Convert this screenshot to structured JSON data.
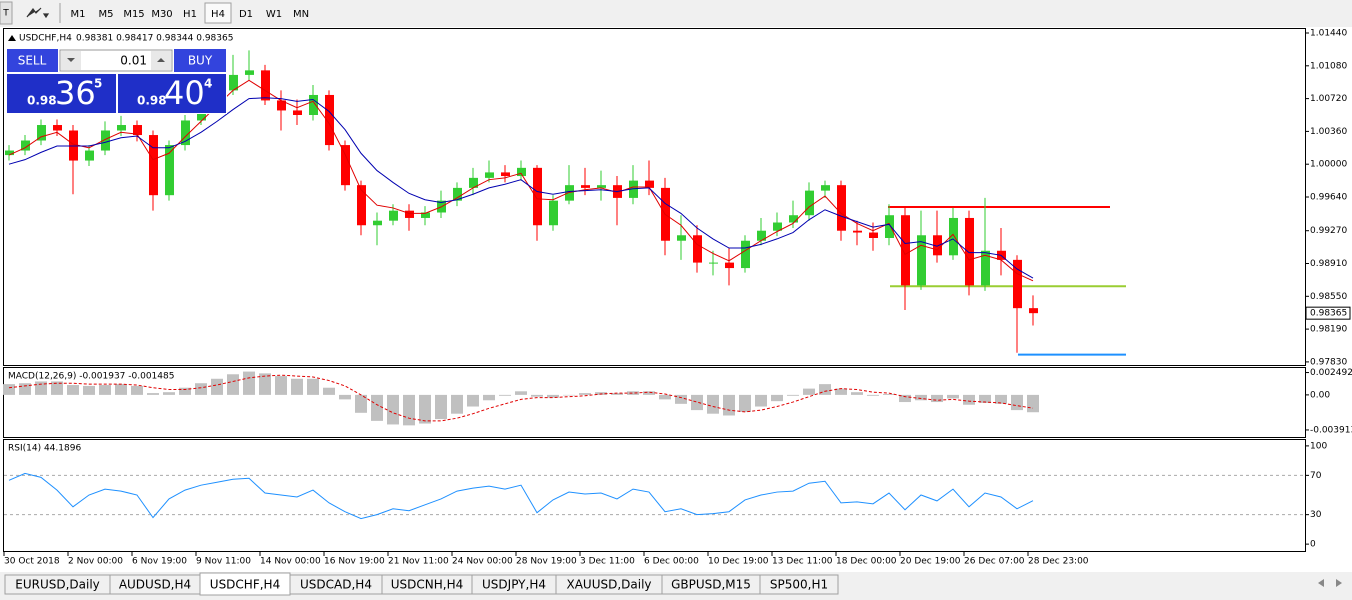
{
  "toolbar": {
    "timeframes": [
      "M1",
      "M5",
      "M15",
      "M30",
      "H1",
      "H4",
      "D1",
      "W1",
      "MN"
    ],
    "active": "H4"
  },
  "trade_panel": {
    "lot": "0.01",
    "sell": {
      "label": "SELL",
      "big_figure": "0.98",
      "pips": "36",
      "point": "5"
    },
    "buy": {
      "label": "BUY",
      "big_figure": "0.98",
      "pips": "40",
      "point": "4"
    }
  },
  "chart_data": [
    {
      "type": "candlestick",
      "title": "USDCHF,H4",
      "quote": "0.98381 0.98417 0.98344 0.98365",
      "categories": [
        "30 Oct 2018",
        null,
        null,
        null,
        "2 Nov 00:00",
        null,
        null,
        null,
        "6 Nov 19:00",
        null,
        null,
        null,
        "9 Nov 11:00",
        null,
        null,
        null,
        "14 Nov 00:00",
        null,
        null,
        null,
        "16 Nov 19:00",
        null,
        null,
        null,
        "21 Nov 11:00",
        null,
        null,
        null,
        "24 Nov 00:00",
        null,
        null,
        null,
        "28 Nov 19:00",
        null,
        null,
        null,
        "3 Dec 11:00",
        null,
        null,
        null,
        "6 Dec 00:00",
        null,
        null,
        null,
        "10 Dec 19:00",
        null,
        null,
        null,
        "13 Dec 11:00",
        null,
        null,
        null,
        "18 Dec 00:00",
        null,
        null,
        null,
        "20 Dec 19:00",
        null,
        null,
        null,
        "26 Dec 07:00",
        null,
        null,
        null,
        "28 Dec 23:00"
      ],
      "open": [
        1.001,
        1.0015,
        1.0026,
        1.0043,
        1.0037,
        1.0004,
        1.0015,
        1.0037,
        1.0043,
        1.0032,
        0.9966,
        1.0021,
        1.0048,
        1.0065,
        1.0081,
        1.0098,
        1.0103,
        1.007,
        1.0059,
        1.0054,
        1.0076,
        1.0021,
        0.9977,
        0.9933,
        0.9938,
        0.9949,
        0.9941,
        0.9947,
        0.996,
        0.9974,
        0.9985,
        0.9991,
        0.9987,
        0.9996,
        0.9933,
        0.996,
        0.9977,
        0.9974,
        0.9977,
        0.9963,
        0.9982,
        0.9974,
        0.9916,
        0.9922,
        0.9892,
        0.9892,
        0.9886,
        0.9916,
        0.9927,
        0.9936,
        0.9944,
        0.9971,
        0.9977,
        0.9927,
        0.9925,
        0.9919,
        0.9944,
        0.9867,
        0.9922,
        0.99,
        0.9941,
        0.9867,
        0.9905,
        0.9895,
        0.9842
      ],
      "high": [
        1.0021,
        1.0032,
        1.0049,
        1.0049,
        1.0043,
        1.0021,
        1.0047,
        1.0053,
        1.0048,
        1.0037,
        1.0026,
        1.0054,
        1.0071,
        1.0088,
        1.012,
        1.0125,
        1.0109,
        1.0081,
        1.0071,
        1.0087,
        1.0081,
        1.0026,
        0.9982,
        0.9947,
        0.9956,
        0.9956,
        0.9954,
        0.9971,
        0.998,
        0.9996,
        1.0004,
        0.9999,
        1.0004,
        0.9999,
        0.9966,
        0.9999,
        0.9996,
        0.9993,
        0.9987,
        0.9999,
        1.0004,
        0.9985,
        0.9944,
        0.9933,
        0.9905,
        0.9908,
        0.9922,
        0.9941,
        0.9947,
        0.996,
        0.998,
        0.9982,
        0.9982,
        0.9938,
        0.9936,
        0.9956,
        0.9952,
        0.9949,
        0.9949,
        0.9952,
        0.9949,
        0.9963,
        0.993,
        0.99,
        0.9856
      ],
      "low": [
        1.0004,
        1.001,
        1.0021,
        1.0031,
        0.9967,
        0.9998,
        1.001,
        1.0031,
        1.0025,
        0.9949,
        0.996,
        1.0015,
        1.0043,
        1.0059,
        1.0076,
        1.0092,
        1.0065,
        1.0037,
        1.0043,
        1.0048,
        1.0015,
        0.9971,
        0.9922,
        0.9911,
        0.9933,
        0.9927,
        0.9933,
        0.9941,
        0.9954,
        0.9966,
        0.998,
        0.998,
        0.9982,
        0.9916,
        0.9927,
        0.9956,
        0.9966,
        0.996,
        0.9933,
        0.9956,
        0.9966,
        0.99,
        0.9895,
        0.9881,
        0.9878,
        0.9867,
        0.9881,
        0.9911,
        0.9921,
        0.993,
        0.9938,
        0.9963,
        0.9916,
        0.9911,
        0.9905,
        0.9911,
        0.984,
        0.9862,
        0.9892,
        0.9895,
        0.9856,
        0.9861,
        0.9878,
        0.9793,
        0.9823
      ],
      "close": [
        1.0015,
        1.0026,
        1.0043,
        1.0037,
        1.0004,
        1.0015,
        1.0037,
        1.0043,
        1.0032,
        0.9966,
        1.0021,
        1.0048,
        1.0065,
        1.0081,
        1.0098,
        1.0103,
        1.007,
        1.0059,
        1.0054,
        1.0076,
        1.0021,
        0.9977,
        0.9933,
        0.9938,
        0.9949,
        0.9941,
        0.9947,
        0.996,
        0.9974,
        0.9985,
        0.9991,
        0.9987,
        0.9996,
        0.9933,
        0.996,
        0.9977,
        0.9974,
        0.9977,
        0.9963,
        0.9982,
        0.9974,
        0.9916,
        0.9922,
        0.9892,
        0.9892,
        0.9886,
        0.9916,
        0.9927,
        0.9936,
        0.9944,
        0.9971,
        0.9977,
        0.9927,
        0.9925,
        0.9919,
        0.9944,
        0.9867,
        0.9922,
        0.99,
        0.9941,
        0.9867,
        0.9905,
        0.9895,
        0.9842,
        0.98365
      ],
      "up_color": "#32cd32",
      "down_color": "#ff0000",
      "moving_averages": [
        {
          "color": "#e00000",
          "values": [
            1.001,
            1.0018,
            1.003,
            1.0035,
            1.0022,
            1.0018,
            1.0027,
            1.0035,
            1.0033,
            1.0005,
            1.0012,
            1.003,
            1.0047,
            1.0064,
            1.0081,
            1.0092,
            1.0081,
            1.007,
            1.0062,
            1.0069,
            1.0045,
            1.0011,
            0.9972,
            0.9955,
            0.9952,
            0.9946,
            0.9946,
            0.9953,
            0.9963,
            0.9974,
            0.9983,
            0.9985,
            0.999,
            0.9962,
            0.9961,
            0.9969,
            0.9972,
            0.9974,
            0.9969,
            0.9975,
            0.9975,
            0.9945,
            0.9933,
            0.9912,
            0.9902,
            0.9894,
            0.9905,
            0.9916,
            0.9926,
            0.9935,
            0.9953,
            0.9965,
            0.9946,
            0.9935,
            0.9927,
            0.9935,
            0.9901,
            0.9911,
            0.9906,
            0.9923,
            0.9895,
            0.99,
            0.9895,
            0.988,
            0.9872
          ]
        },
        {
          "color": "#0000b0",
          "values": [
            1.0,
            1.0005,
            1.0013,
            1.002,
            1.002,
            1.002,
            1.0024,
            1.0029,
            1.0031,
            1.0018,
            1.0018,
            1.0025,
            1.0035,
            1.0047,
            1.006,
            1.0072,
            1.0073,
            1.0072,
            1.0069,
            1.0071,
            1.0058,
            1.0038,
            1.0012,
            0.9993,
            0.998,
            0.9968,
            0.9961,
            0.9958,
            0.9961,
            0.9967,
            0.9974,
            0.9978,
            0.9983,
            0.997,
            0.9967,
            0.997,
            0.9971,
            0.9972,
            0.997,
            0.9973,
            0.9974,
            0.9957,
            0.9946,
            0.993,
            0.9918,
            0.9908,
            0.9908,
            0.9912,
            0.9918,
            0.9925,
            0.9939,
            0.995,
            0.9943,
            0.9937,
            0.9931,
            0.9934,
            0.9913,
            0.9915,
            0.991,
            0.9918,
            0.9903,
            0.9903,
            0.99,
            0.9885,
            0.9875
          ]
        }
      ],
      "levels": [
        {
          "value": 0.9953,
          "color": "#ff0000"
        },
        {
          "value": 0.9866,
          "color": "#9acd32"
        },
        {
          "value": 0.9791,
          "color": "#1e90ff"
        }
      ],
      "current_price": 0.98365,
      "ylim": [
        0.97796,
        1.01484
      ],
      "yticks": [
        {
          "value": 1.0144,
          "label": "1.01440"
        },
        {
          "value": 1.0108,
          "label": "1.01080"
        },
        {
          "value": 1.0072,
          "label": "1.00720"
        },
        {
          "value": 1.0036,
          "label": "1.00360"
        },
        {
          "value": 1,
          "label": "1.00000"
        },
        {
          "value": 0.9964,
          "label": "0.99640"
        },
        {
          "value": 0.9927,
          "label": "0.99270"
        },
        {
          "value": 0.9891,
          "label": "0.98910"
        },
        {
          "value": 0.9855,
          "label": "0.98550"
        },
        {
          "value": 0.9819,
          "label": "0.98190"
        },
        {
          "value": 0.9783,
          "label": "0.97830"
        }
      ]
    },
    {
      "type": "macd",
      "title": "MACD(12,26,9) -0.001937 -0.001485",
      "color": "#c0c0c0",
      "values": [
        0.0012,
        0.0013,
        0.0015,
        0.0015,
        0.0011,
        0.001,
        0.0011,
        0.0012,
        0.001,
        0.0002,
        0.0003,
        0.0008,
        0.0013,
        0.0018,
        0.0023,
        0.0026,
        0.0024,
        0.0021,
        0.0018,
        0.0018,
        0.0008,
        -0.0005,
        -0.002,
        -0.0029,
        -0.0033,
        -0.0034,
        -0.0032,
        -0.0027,
        -0.0021,
        -0.0013,
        -0.0006,
        -0.0001,
        0.0004,
        -0.0002,
        -0.0003,
        0.0,
        0.0002,
        0.0003,
        0.0002,
        0.0004,
        0.0004,
        -0.0005,
        -0.001,
        -0.0017,
        -0.0021,
        -0.0023,
        -0.0019,
        -0.0013,
        -0.0007,
        -0.0001,
        0.0007,
        0.0012,
        0.0007,
        0.0003,
        -0.0001,
        0.0001,
        -0.0008,
        -0.0006,
        -0.0008,
        -0.0004,
        -0.0011,
        -0.0009,
        -0.001,
        -0.0017,
        -0.001937
      ],
      "signal": {
        "color": "#e00000",
        "values": [
          0.0008,
          0.001,
          0.0012,
          0.0013,
          0.0013,
          0.0012,
          0.0012,
          0.0012,
          0.0011,
          0.0008,
          0.0006,
          0.0006,
          0.0008,
          0.0011,
          0.0015,
          0.0019,
          0.0021,
          0.0022,
          0.0021,
          0.002,
          0.0016,
          0.001,
          0.0,
          -0.0011,
          -0.002,
          -0.0026,
          -0.0029,
          -0.0029,
          -0.0026,
          -0.0021,
          -0.0015,
          -0.001,
          -0.0005,
          -0.0003,
          -0.0003,
          -0.0002,
          -0.0001,
          0.0001,
          0.0002,
          0.0002,
          0.0003,
          0.0001,
          -0.0003,
          -0.0008,
          -0.0013,
          -0.0017,
          -0.0019,
          -0.0017,
          -0.0013,
          -0.0008,
          -0.0002,
          0.0004,
          0.0007,
          0.0006,
          0.0003,
          0.0002,
          -0.0002,
          -0.0004,
          -0.0006,
          -0.0005,
          -0.0007,
          -0.0008,
          -0.0009,
          -0.0012,
          -0.001485
        ]
      },
      "ylim": [
        -0.0047,
        0.003
      ],
      "yticks": [
        0.002492,
        {
          "value": 0,
          "label": "0.00"
        },
        -0.003913
      ]
    },
    {
      "type": "line",
      "title": "RSI(14) 44.1896",
      "color": "#1e90ff",
      "values": [
        65,
        72,
        68,
        55,
        38,
        50,
        56,
        54,
        50,
        27,
        46,
        55,
        60,
        63,
        66,
        67,
        52,
        50,
        48,
        55,
        42,
        33,
        26,
        30,
        36,
        34,
        40,
        46,
        54,
        57,
        59,
        56,
        60,
        32,
        45,
        53,
        51,
        52,
        46,
        56,
        53,
        33,
        36,
        30,
        31,
        33,
        45,
        50,
        53,
        54,
        62,
        64,
        42,
        43,
        41,
        52,
        35,
        50,
        44,
        56,
        38,
        52,
        48,
        36,
        44.1896
      ],
      "levels": [
        70,
        30
      ],
      "ylim": [
        -7,
        106
      ],
      "yticks": [
        100,
        70,
        30,
        0
      ]
    }
  ],
  "tabs": {
    "items": [
      "EURUSD,Daily",
      "AUDUSD,H4",
      "USDCHF,H4",
      "USDCAD,H4",
      "USDCNH,H4",
      "USDJPY,H4",
      "XAUUSD,Daily",
      "GBPUSD,M15",
      "SP500,H1"
    ],
    "active": "USDCHF,H4"
  }
}
